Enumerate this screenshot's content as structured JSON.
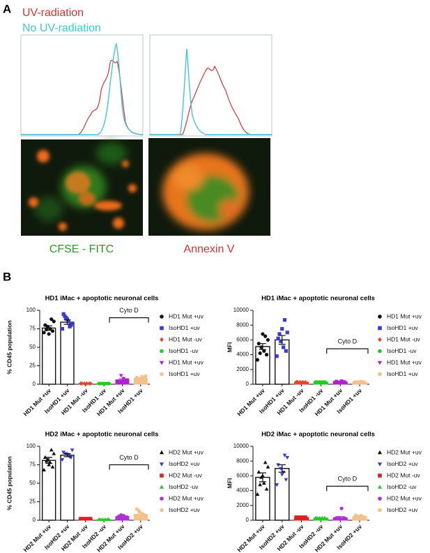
{
  "panel_a": {
    "label": "A",
    "legend": [
      "UV-radiation",
      "No UV-radiation"
    ],
    "image_captions": [
      "CFSE - FITC",
      "Annexin V"
    ]
  },
  "panel_b": {
    "label": "B"
  },
  "chart_data": [
    {
      "type": "bar",
      "title": "HD1 iMac + apoptotic neuronal cells",
      "ylabel": "% CD45 population",
      "categories": [
        "HD1 Mut +uv",
        "IsoHD1 +uv",
        "HD1 Mut -uv",
        "IsoHD1 -uv",
        "HD1 Mut +uv",
        "IsoHD1 +uv"
      ],
      "legend": [
        "HD1 Mut +uv",
        "IsoHD1 +uv",
        "HD1 Mut -uv",
        "IsoHD1 -uv",
        "HD1 Mut +uv",
        "IsoHD1 +uv"
      ],
      "colors": [
        "#111111",
        "#3a3ad8",
        "#e8442a",
        "#22cc22",
        "#b020d0",
        "#f5c08a"
      ],
      "markers": [
        "circle",
        "square",
        "diamond",
        "circle",
        "triangle-down",
        "circle"
      ],
      "values": [
        76,
        84,
        1,
        1,
        6,
        8
      ],
      "errors": [
        3,
        3,
        0.3,
        0.3,
        1.5,
        1
      ],
      "points": [
        [
          70,
          72,
          75,
          78,
          80,
          85,
          88,
          68,
          74
        ],
        [
          75,
          80,
          85,
          90,
          95,
          82,
          78,
          88,
          92
        ],
        [
          1,
          1,
          1,
          1,
          1,
          1
        ],
        [
          1,
          1,
          1,
          1,
          1,
          1
        ],
        [
          3,
          5,
          8,
          12,
          4,
          6,
          2
        ],
        [
          6,
          8,
          10,
          7,
          9,
          11,
          5
        ]
      ],
      "annotation": "Cyto D",
      "ylim": [
        0,
        100
      ],
      "yticks": [
        0,
        25,
        50,
        75,
        100
      ]
    },
    {
      "type": "bar",
      "title": "HD1 iMac + apoptotic neuronal cells",
      "ylabel": "MFI",
      "categories": [
        "HD1 Mut +uv",
        "IsoHD1 +uv",
        "HD1 Mut -uv",
        "IsoHD1 -uv",
        "HD1 Mut +uv",
        "IsoHD1 +uv"
      ],
      "legend": [
        "HD1 Mut +uv",
        "IsoHD1 +uv",
        "HD1 Mut -uv",
        "IsoHD1 -uv",
        "HD1 Mut +uv",
        "IsoHD1 +uv"
      ],
      "colors": [
        "#111111",
        "#3a3ad8",
        "#e8442a",
        "#22cc22",
        "#b020d0",
        "#f5c08a"
      ],
      "markers": [
        "circle",
        "square",
        "diamond",
        "circle",
        "triangle-down",
        "circle"
      ],
      "values": [
        5100,
        6000,
        300,
        300,
        350,
        300
      ],
      "errors": [
        400,
        600,
        30,
        30,
        40,
        30
      ],
      "points": [
        [
          3300,
          4000,
          4500,
          5000,
          5500,
          6000,
          6500,
          6800,
          4200
        ],
        [
          3800,
          4500,
          5000,
          5800,
          6200,
          7000,
          8700,
          7500,
          6800
        ],
        [
          300,
          300,
          300,
          300,
          300
        ],
        [
          300,
          300,
          300,
          300,
          300
        ],
        [
          250,
          350,
          450,
          300,
          400
        ],
        [
          250,
          300,
          350,
          300,
          300
        ]
      ],
      "annotation": "Cyto D",
      "ylim": [
        0,
        10000
      ],
      "yticks": [
        0,
        2000,
        4000,
        6000,
        8000,
        10000
      ]
    },
    {
      "type": "bar",
      "title": "HD2 iMac + apoptotic neuronal cells",
      "ylabel": "% CD45 population",
      "categories": [
        "HD2 Mut +uv",
        "IsoHD2 +uv",
        "HD2 Mut -uv",
        "IsoHD2 -uv",
        "HD2 Mut +uv",
        "IsoHD2 +uv"
      ],
      "legend": [
        "HD2 Mut +uv",
        "IsoHD2 +uv",
        "HD2 Mut -uv",
        "IsoHD2 -uv",
        "HD2 Mut +uv",
        "IsoHD2 +uv"
      ],
      "colors": [
        "#111111",
        "#3a3ad8",
        "#e02020",
        "#22cc22",
        "#b030d8",
        "#f5c08a"
      ],
      "markers": [
        "triangle-up",
        "triangle-down",
        "square",
        "triangle-up",
        "circle",
        "circle"
      ],
      "values": [
        81,
        88,
        2,
        1,
        5,
        8
      ],
      "errors": [
        4,
        2,
        0.3,
        0.3,
        1,
        1.5
      ],
      "points": [
        [
          68,
          72,
          78,
          82,
          85,
          90,
          95,
          75,
          80
        ],
        [
          82,
          85,
          88,
          90,
          92,
          95,
          86,
          89
        ],
        [
          2,
          2,
          2,
          2,
          2,
          2
        ],
        [
          1,
          1,
          1,
          1,
          1,
          1
        ],
        [
          3,
          4,
          6,
          7,
          5,
          4
        ],
        [
          4,
          7,
          9,
          12,
          15,
          6
        ]
      ],
      "annotation": "Cyto D",
      "ylim": [
        0,
        100
      ],
      "yticks": [
        0,
        25,
        50,
        75,
        100
      ]
    },
    {
      "type": "bar",
      "title": "HD2 iMac + apoptotic neuronal cells",
      "ylabel": "MFI",
      "categories": [
        "HD2 Mut +uv",
        "IsoHD2 +uv",
        "HD2 Mut -uv",
        "IsoHD2 -uv",
        "HD2 Mut +uv",
        "IsoHD2 +uv"
      ],
      "legend": [
        "HD2 Mut +uv",
        "IsoHD2 +uv",
        "HD2 Mut -uv",
        "IsoHD2 -uv",
        "HD2 Mut +uv",
        "IsoHD2 +uv"
      ],
      "colors": [
        "#111111",
        "#3a3ad8",
        "#e02020",
        "#22cc22",
        "#b030d8",
        "#f5c08a"
      ],
      "markers": [
        "triangle-up",
        "triangle-down",
        "square",
        "triangle-up",
        "circle",
        "circle"
      ],
      "values": [
        5800,
        7000,
        400,
        300,
        350,
        500
      ],
      "errors": [
        600,
        500,
        30,
        30,
        150,
        60
      ],
      "points": [
        [
          3500,
          4200,
          5000,
          5800,
          6500,
          7200,
          7800,
          6000,
          4800
        ],
        [
          4800,
          5500,
          6500,
          7000,
          7500,
          8500,
          8800,
          6200
        ],
        [
          400,
          400,
          400,
          400,
          400
        ],
        [
          300,
          300,
          300,
          300,
          300
        ],
        [
          200,
          300,
          1600,
          250,
          300
        ],
        [
          300,
          450,
          600,
          500,
          650
        ]
      ],
      "annotation": "Cyto D",
      "ylim": [
        0,
        10000
      ],
      "yticks": [
        0,
        2000,
        4000,
        6000,
        8000,
        10000
      ]
    }
  ]
}
